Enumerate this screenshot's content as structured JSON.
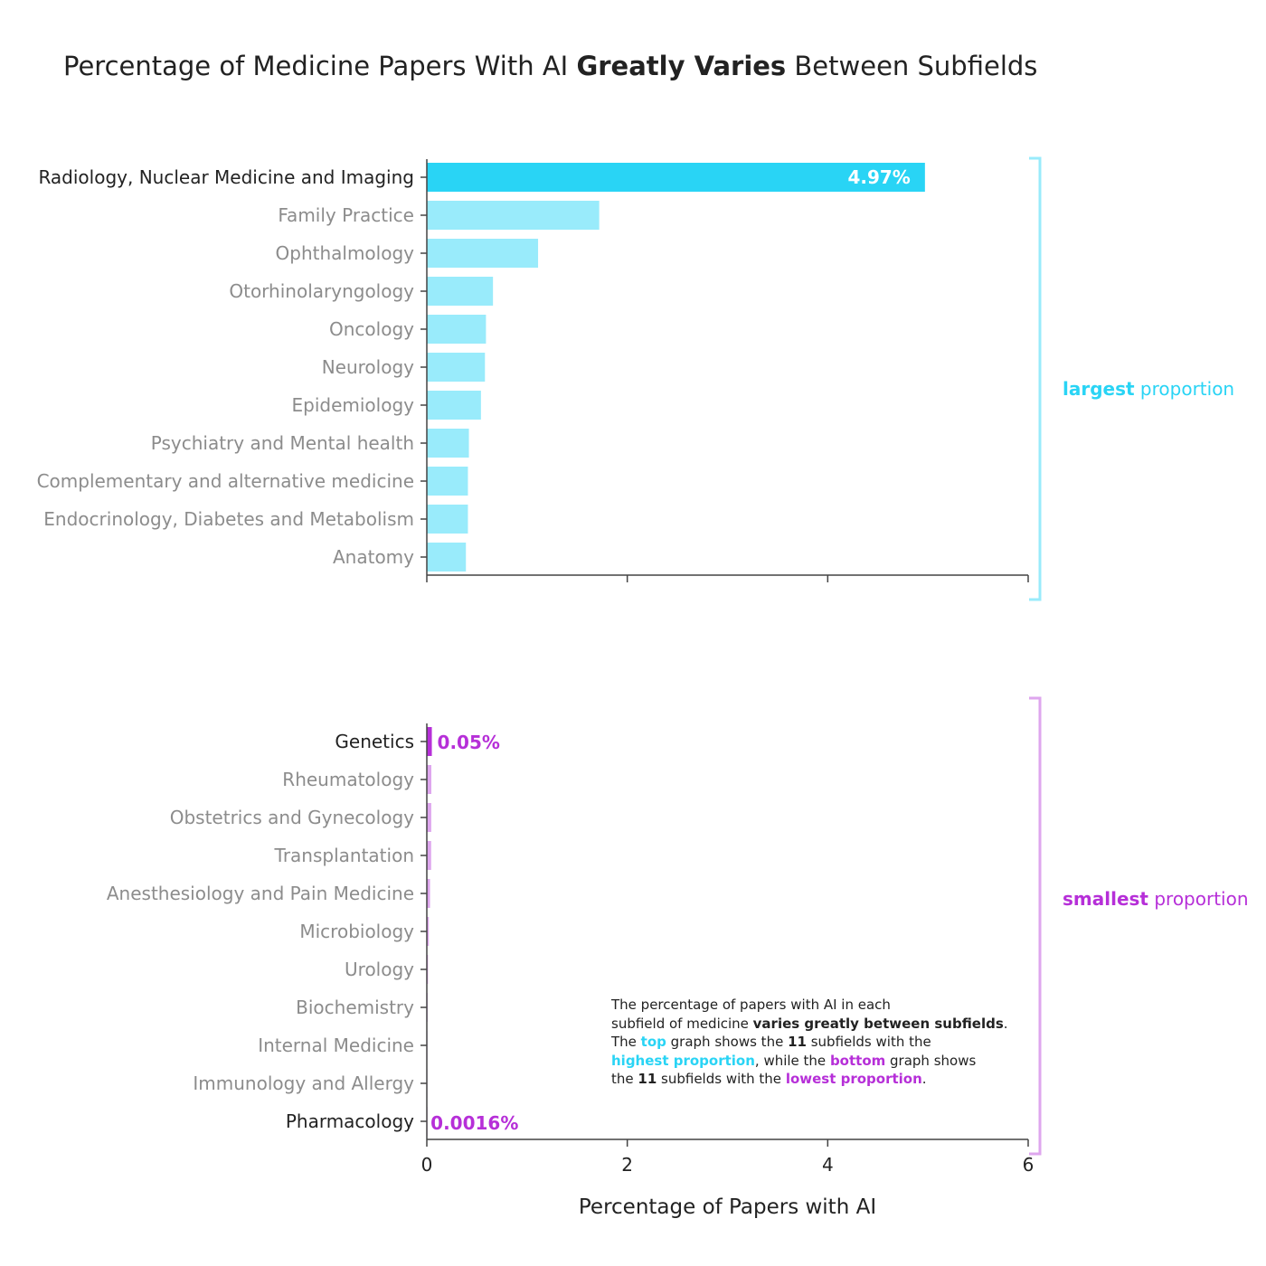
{
  "title": {
    "prefix": "Percentage of Medicine Papers With AI ",
    "bold": "Greatly Varies",
    "suffix": " Between Subfields"
  },
  "colors": {
    "top_highlight": "#29d4f5",
    "top_bar": "#99ebfb",
    "bottom_highlight": "#b62fd8",
    "bottom_bar": "#dea6ee",
    "label_highlight": "#222222",
    "label_muted": "#8c8c8c",
    "axis": "#444444"
  },
  "chart_data": [
    {
      "type": "bar",
      "orientation": "horizontal",
      "panel": "top",
      "categories": [
        "Radiology, Nuclear Medicine and Imaging",
        "Family Practice",
        "Ophthalmology",
        "Otorhinolaryngology",
        "Oncology",
        "Neurology",
        "Epidemiology",
        "Psychiatry and Mental health",
        "Complementary and alternative medicine",
        "Endocrinology, Diabetes and Metabolism",
        "Anatomy"
      ],
      "values": [
        4.97,
        1.72,
        1.11,
        0.66,
        0.59,
        0.58,
        0.54,
        0.42,
        0.41,
        0.41,
        0.39
      ],
      "data_labels": [
        {
          "index": 0,
          "text": "4.97%"
        }
      ],
      "xlim": [
        0,
        6
      ],
      "xticks": [
        0,
        2,
        4,
        6
      ],
      "grid": false,
      "side_label": {
        "bold": "largest",
        "rest": " proportion"
      }
    },
    {
      "type": "bar",
      "orientation": "horizontal",
      "panel": "bottom",
      "categories": [
        "Genetics",
        "Rheumatology",
        "Obstetrics and Gynecology",
        "Transplantation",
        "Anesthesiology and Pain Medicine",
        "Microbiology",
        "Urology",
        "Biochemistry",
        "Internal Medicine",
        "Immunology and Allergy",
        "Pharmacology"
      ],
      "values": [
        0.05,
        0.045,
        0.044,
        0.043,
        0.032,
        0.02,
        0.012,
        0.008,
        0.006,
        0.004,
        0.0016
      ],
      "data_labels": [
        {
          "index": 0,
          "text": "0.05%"
        },
        {
          "index": 10,
          "text": "0.0016%"
        }
      ],
      "xlim": [
        0,
        6
      ],
      "xticks": [
        0,
        2,
        4,
        6
      ],
      "xtick_labels": [
        "0",
        "2",
        "4",
        "6"
      ],
      "xlabel": "Percentage of Papers with AI",
      "grid": false,
      "side_label": {
        "bold": "smallest",
        "rest": " proportion"
      }
    }
  ],
  "note": {
    "l1": "The percentage of papers with AI in each",
    "l2a": "subfield of medicine ",
    "l2b": "varies greatly between subfields",
    "l2c": ".",
    "l3a": "The ",
    "l3b": "top",
    "l3c": " graph shows the ",
    "l3d": "11",
    "l3e": " subfields with the",
    "l4a": "highest proportion",
    "l4b": ", while the ",
    "l4c": "bottom",
    "l4d": " graph shows",
    "l5a": "the ",
    "l5b": "11",
    "l5c": " subfields with the ",
    "l5d": "lowest proportion",
    "l5e": "."
  }
}
